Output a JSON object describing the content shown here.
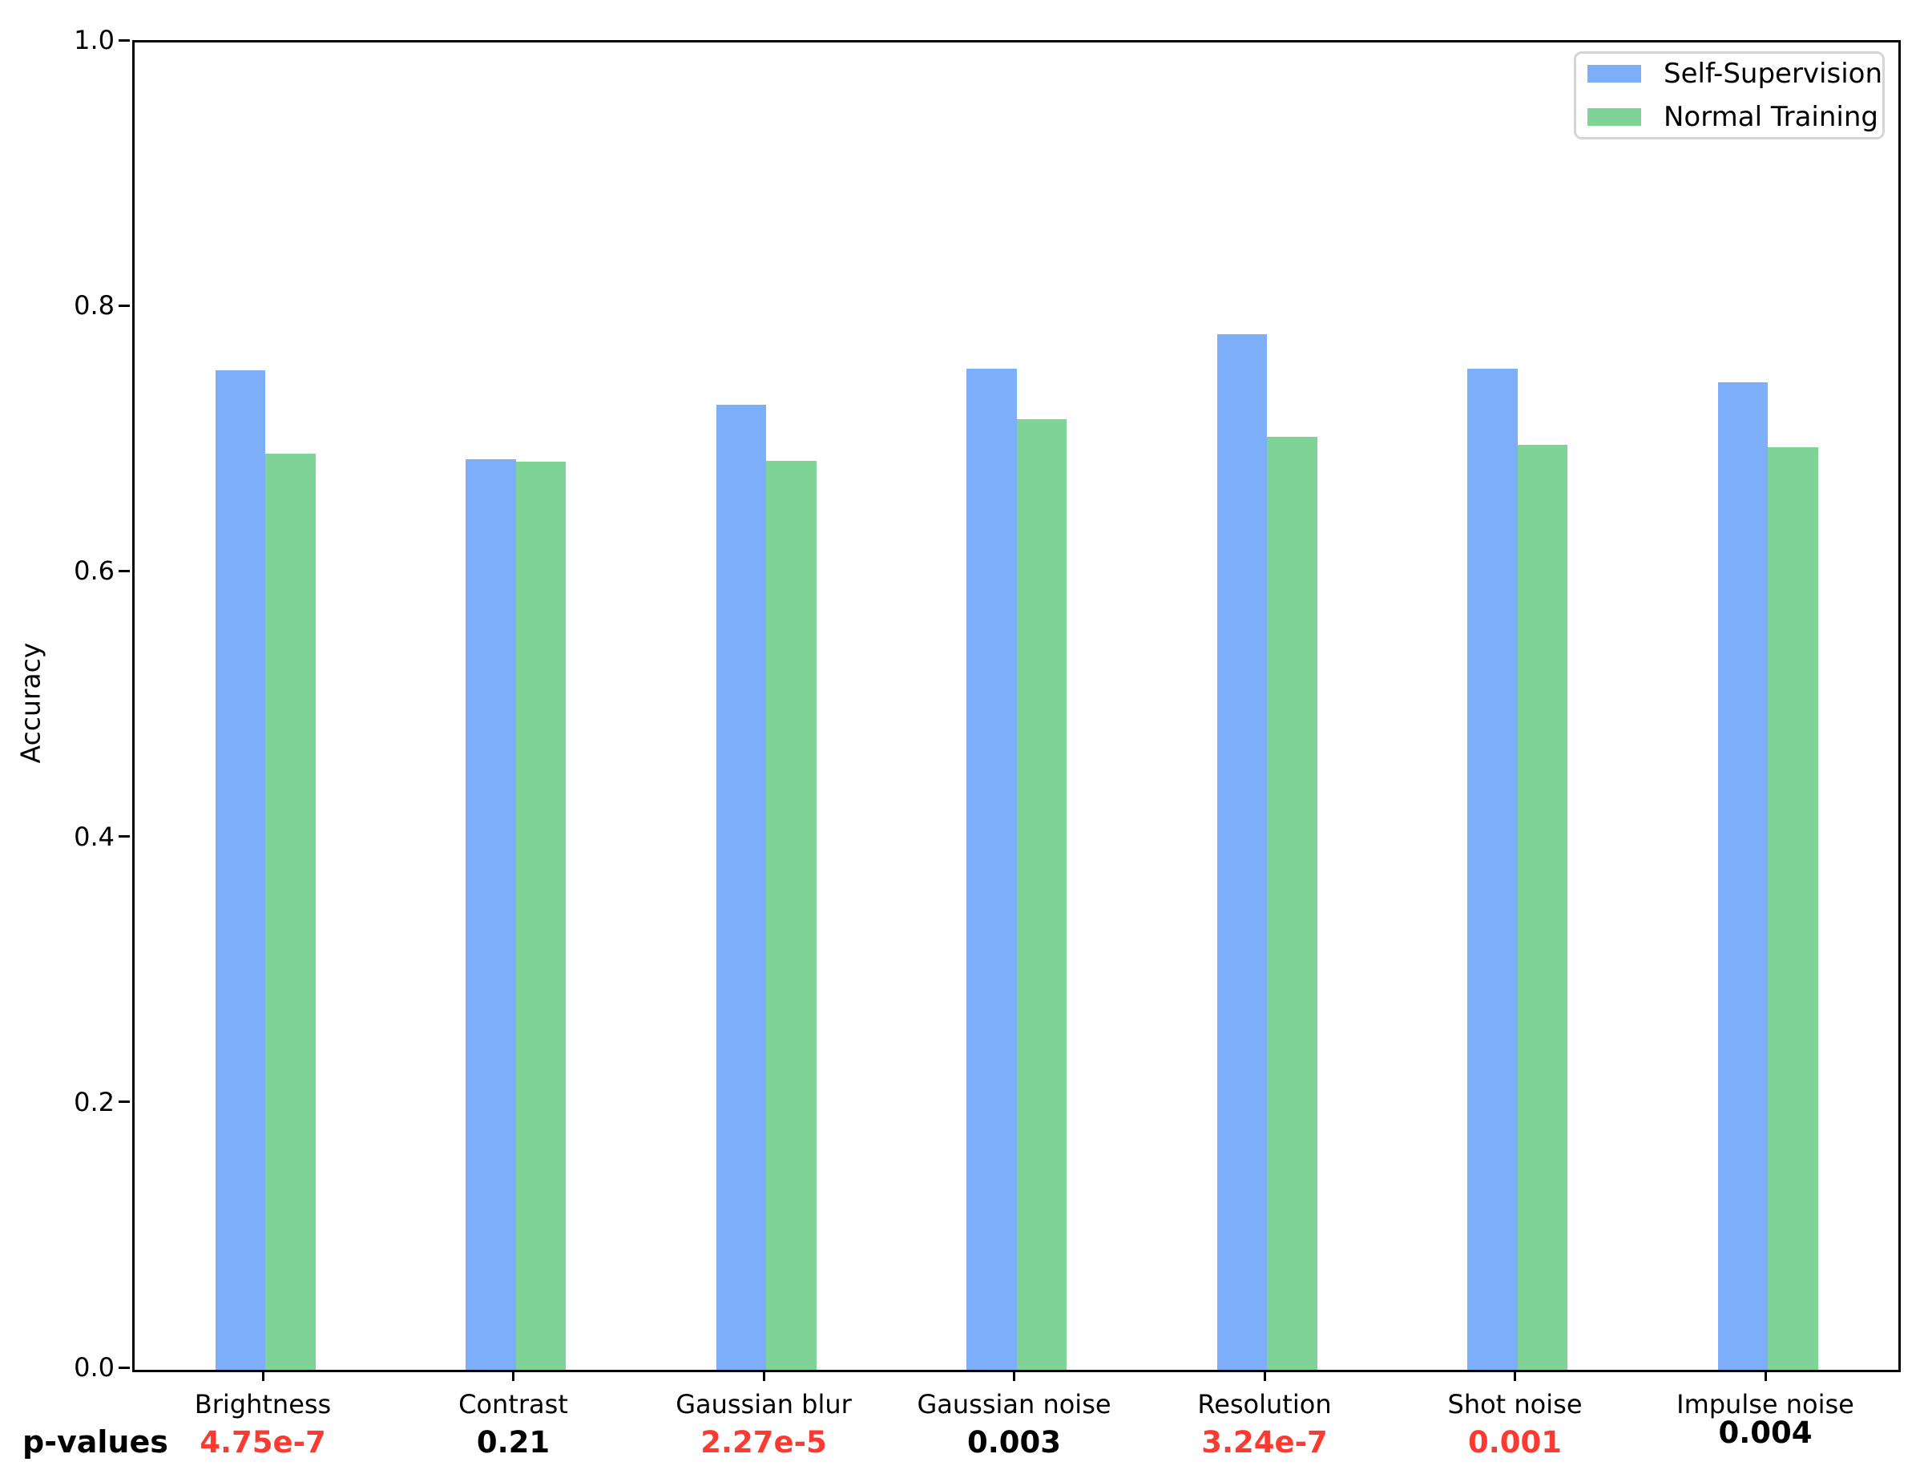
{
  "figure": {
    "background": "#ffffff",
    "axis_color": "#000000"
  },
  "chart_data": {
    "type": "bar",
    "title": "",
    "xlabel": "",
    "ylabel": "Accuracy",
    "ylim": [
      0.0,
      1.0
    ],
    "yticks": [
      0.0,
      0.2,
      0.4,
      0.6,
      0.8,
      1.0
    ],
    "grid": false,
    "legend_position": "upper right",
    "categories": [
      "Brightness",
      "Contrast",
      "Gaussian blur",
      "Gaussian noise",
      "Resolution",
      "Shot noise",
      "Impulse noise"
    ],
    "series": [
      {
        "name": "Self-Supervision",
        "color": "#7daefa",
        "values": [
          0.753,
          0.686,
          0.727,
          0.754,
          0.78,
          0.754,
          0.744
        ]
      },
      {
        "name": "Normal Training",
        "color": "#7fd396",
        "values": [
          0.69,
          0.684,
          0.685,
          0.716,
          0.703,
          0.697,
          0.695
        ]
      }
    ],
    "p_values": {
      "row_label": "p-values",
      "significant_color": "#fb3b31",
      "normal_color": "#000000",
      "items": [
        {
          "text": "4.75e-7",
          "color": "#fb3b31"
        },
        {
          "text": "0.21",
          "color": "#000000"
        },
        {
          "text": "2.27e-5",
          "color": "#fb3b31"
        },
        {
          "text": "0.003",
          "color": "#000000"
        },
        {
          "text": "3.24e-7",
          "color": "#fb3b31"
        },
        {
          "text": "0.001",
          "color": "#fb3b31"
        },
        {
          "text": "0.004",
          "color": "#000000",
          "raised": true
        }
      ]
    }
  }
}
